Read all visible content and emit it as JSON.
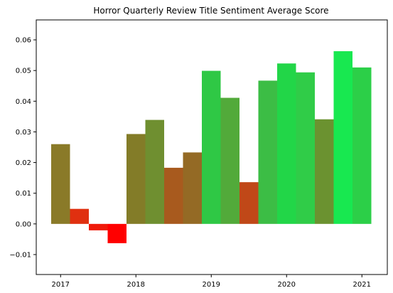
{
  "chart_data": {
    "type": "bar",
    "title": "Horror Quarterly Review Title Sentiment Average Score",
    "xlabel": "",
    "ylabel": "",
    "x_tick_labels": [
      "2017",
      "2018",
      "2019",
      "2020",
      "2021"
    ],
    "y_tick_labels": [
      "−0.01",
      "0.00",
      "0.01",
      "0.02",
      "0.03",
      "0.04",
      "0.05",
      "0.06"
    ],
    "ylim": [
      -0.0165,
      0.0665
    ],
    "grid": false,
    "legend": "none",
    "bars": [
      {
        "period": "2017 Q1",
        "value": 0.026,
        "color": "#8a7a28"
      },
      {
        "period": "2017 Q2",
        "value": 0.0049,
        "color": "#e03010"
      },
      {
        "period": "2017 Q3",
        "value": -0.0021,
        "color": "#f01a0a"
      },
      {
        "period": "2017 Q4",
        "value": -0.0063,
        "color": "#ff0000"
      },
      {
        "period": "2018 Q1",
        "value": 0.0293,
        "color": "#837c28"
      },
      {
        "period": "2018 Q2",
        "value": 0.0339,
        "color": "#6f8f30"
      },
      {
        "period": "2018 Q3",
        "value": 0.0183,
        "color": "#a85a1e"
      },
      {
        "period": "2018 Q4",
        "value": 0.0233,
        "color": "#946a25"
      },
      {
        "period": "2019 Q1",
        "value": 0.0499,
        "color": "#2fc845"
      },
      {
        "period": "2019 Q2",
        "value": 0.0411,
        "color": "#52aa3a"
      },
      {
        "period": "2019 Q3",
        "value": 0.0136,
        "color": "#c04818"
      },
      {
        "period": "2019 Q4",
        "value": 0.0467,
        "color": "#3cbd45"
      },
      {
        "period": "2020 Q1",
        "value": 0.0523,
        "color": "#22d648"
      },
      {
        "period": "2020 Q2",
        "value": 0.0494,
        "color": "#30cc48"
      },
      {
        "period": "2020 Q3",
        "value": 0.0341,
        "color": "#6b9230"
      },
      {
        "period": "2020 Q4",
        "value": 0.0563,
        "color": "#18e850"
      },
      {
        "period": "2021 Q1",
        "value": 0.051,
        "color": "#2ccf48"
      }
    ]
  }
}
